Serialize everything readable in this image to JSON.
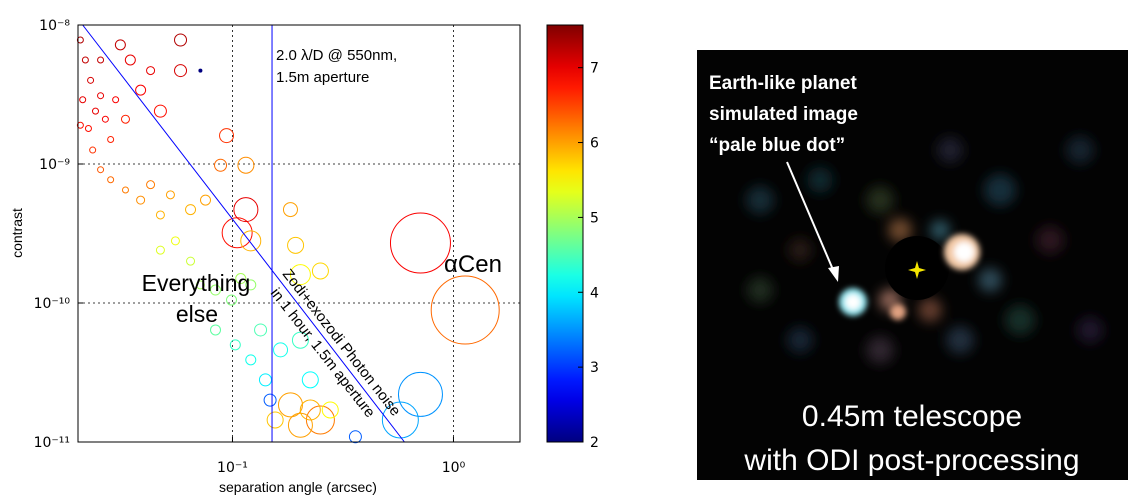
{
  "chart_data": {
    "type": "scatter",
    "xlabel": "separation angle (arcsec)",
    "ylabel": "contrast",
    "xscale": "log",
    "yscale": "log",
    "grid": true,
    "xlim": [
      0.02,
      2
    ],
    "ylim": [
      1e-11,
      1e-08
    ],
    "xticks": [
      {
        "value": 0.1,
        "label": "10⁻¹"
      },
      {
        "value": 1,
        "label": "10⁰"
      }
    ],
    "yticks": [
      {
        "value": 1e-11,
        "label": "10⁻¹¹"
      },
      {
        "value": 1e-10,
        "label": "10⁻¹⁰"
      },
      {
        "value": 1e-09,
        "label": "10⁻⁹"
      },
      {
        "value": 1e-08,
        "label": "10⁻⁸"
      }
    ],
    "colormap": "jet",
    "colorbar": {
      "lim": [
        2,
        7.57
      ],
      "ticks": [
        2,
        3,
        4,
        5,
        6,
        7
      ]
    },
    "series": [
      {
        "x": [
          0.0205,
          0.0216,
          0.0228,
          0.021,
          0.024,
          0.0223,
          0.0253,
          0.0266,
          0.0205,
          0.0233,
          0.0281,
          0.0311,
          0.0345,
          0.0384,
          0.0426,
          0.0253,
          0.0296,
          0.0328,
          0.0582,
          0.0582,
          0.0472,
          0.0253,
          0.0281,
          0.0328,
          0.0384,
          0.0426,
          0.0524,
          0.0472,
          0.0646,
          0.0755,
          0.0883,
          0.094,
          0.115,
          0.105,
          0.115,
          0.121,
          0.183,
          0.193,
          0.709,
          1.13,
          0.203,
          0.25,
          0.0472,
          0.0552,
          0.0646,
          0.0716,
          0.0838,
          0.099,
          0.121,
          0.0838,
          0.103,
          0.121,
          0.134,
          0.165,
          0.141,
          0.203,
          0.225,
          0.109,
          0.183,
          0.25,
          0.203,
          0.277,
          0.156,
          0.225,
          0.36,
          0.709,
          0.575,
          0.148
        ],
        "values": [
          7.8e-09,
          5.6e-09,
          4e-09,
          2.9e-09,
          2.4e-09,
          1.8e-09,
          3.1e-09,
          2.1e-09,
          1.9e-09,
          1.26e-09,
          1.5e-09,
          7.2e-09,
          5.6e-09,
          3.4e-09,
          4.7e-09,
          5.6e-09,
          2.9e-09,
          2.1e-09,
          7.8e-09,
          4.7e-09,
          2.4e-09,
          9.1e-10,
          7.7e-10,
          6.5e-10,
          5.5e-10,
          7.1e-10,
          6e-10,
          4.3e-10,
          4.7e-10,
          5.5e-10,
          9.8e-10,
          1.6e-09,
          9.8e-10,
          3.2e-10,
          4.7e-10,
          2.8e-10,
          4.7e-10,
          2.6e-10,
          2.7e-10,
          8.9e-11,
          1.6e-10,
          1.7e-10,
          2.4e-10,
          2.8e-10,
          2e-10,
          1.35e-10,
          1.24e-10,
          1.05e-10,
          1.35e-10,
          6.4e-11,
          5e-11,
          3.9e-11,
          6.4e-11,
          4.6e-11,
          2.8e-11,
          5.4e-11,
          2.8e-11,
          1.5e-10,
          1.85e-11,
          1.44e-11,
          1.32e-11,
          1.7e-11,
          1.44e-11,
          1.7e-11,
          1.09e-11,
          2.2e-11,
          1.44e-11,
          2e-11
        ],
        "sizes": [
          3,
          3,
          3,
          3,
          3,
          3,
          3,
          3,
          3,
          3,
          3,
          5,
          5,
          5,
          4,
          3,
          3,
          4,
          6,
          6,
          6,
          3,
          3,
          3,
          4,
          4,
          4,
          4,
          5,
          5,
          6,
          7,
          8,
          15,
          12,
          10,
          7,
          8,
          30,
          34,
          10,
          8,
          4,
          4,
          4,
          4,
          5,
          5,
          5,
          5,
          5,
          5,
          6,
          7,
          6,
          8,
          8,
          5,
          12,
          14,
          12,
          8,
          8,
          10,
          6,
          22,
          18,
          6
        ],
        "color_values": [
          7.3,
          7.2,
          7.1,
          7.0,
          7.0,
          6.8,
          7.0,
          6.9,
          6.8,
          6.6,
          6.7,
          7.2,
          7.0,
          6.9,
          7.0,
          7.2,
          6.9,
          6.7,
          7.3,
          7.1,
          6.8,
          6.4,
          6.3,
          6.2,
          6.1,
          6.2,
          6.0,
          5.9,
          5.9,
          6.0,
          6.3,
          6.6,
          6.1,
          6.8,
          7.0,
          5.9,
          6.0,
          5.8,
          6.9,
          6.3,
          5.5,
          5.7,
          5.3,
          5.4,
          5.2,
          5.0,
          4.9,
          4.8,
          4.9,
          4.6,
          4.4,
          4.2,
          4.5,
          4.2,
          4.0,
          4.4,
          4.1,
          5.0,
          6.0,
          6.2,
          6.0,
          5.5,
          5.8,
          5.9,
          3.2,
          3.5,
          3.6,
          3.2
        ]
      }
    ],
    "filled_point": {
      "x": 0.0716,
      "value": 4.7e-09,
      "color": "#000080"
    },
    "lines": [
      {
        "x": [
          0.021,
          0.6
        ],
        "values": [
          1e-08,
          1e-11
        ],
        "color": "#0000ff"
      },
      {
        "x": [
          0.151,
          0.151
        ],
        "values": [
          1e-08,
          1e-11
        ],
        "color": "#0000ff"
      }
    ],
    "annotations": {
      "aperture": [
        "2.0 λ/D @ 550nm,",
        "1.5m aperture"
      ],
      "population": [
        "Everything",
        "else"
      ],
      "acen": "αCen",
      "noise": [
        "Zodi+exozodi Photon noise",
        "in 1 hour, 1.5m aperture"
      ]
    }
  },
  "image": {
    "callout": [
      "Earth-like planet",
      "simulated image",
      "“pale blue dot”"
    ],
    "caption": [
      "0.45m telescope",
      "with ODI post-processing"
    ]
  }
}
